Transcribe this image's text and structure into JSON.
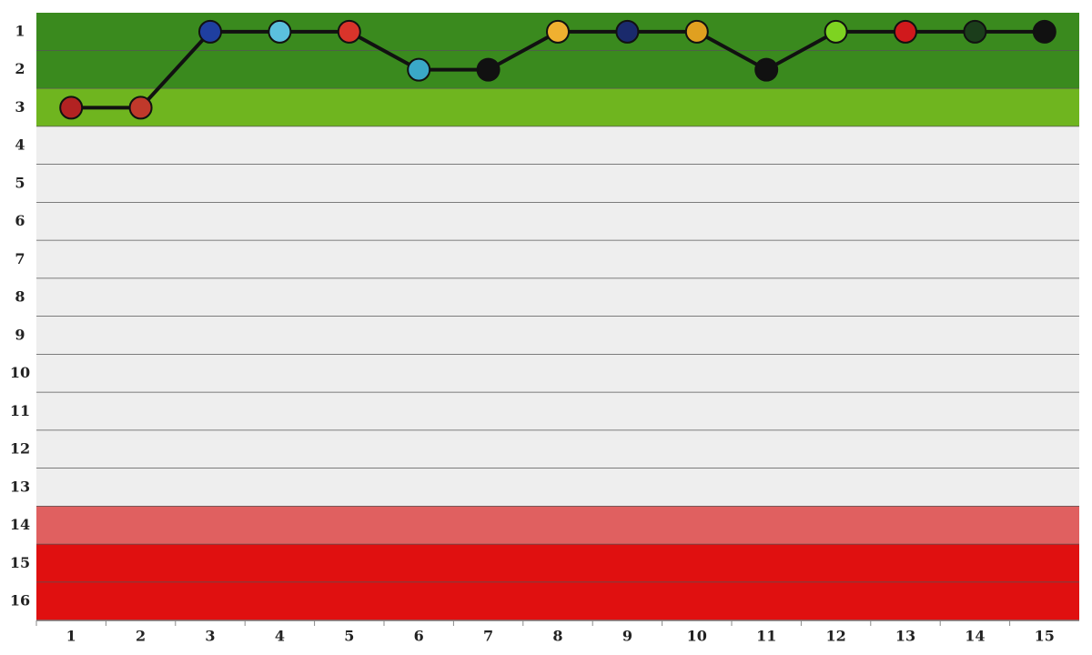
{
  "chart_data": {
    "type": "line",
    "x": [
      1,
      2,
      3,
      4,
      5,
      6,
      7,
      8,
      9,
      10,
      11,
      12,
      13,
      14,
      15
    ],
    "values": [
      3,
      3,
      1,
      1,
      1,
      2,
      2,
      1,
      1,
      1,
      2,
      1,
      1,
      1,
      1
    ],
    "color": "#111111",
    "marker_colors": [
      "#b22222",
      "#c0392b",
      "#1f3fa0",
      "#5bc0de",
      "#d9342b",
      "#3aa8c8",
      "#111111",
      "#f0b030",
      "#1a2a6c",
      "#e0a020",
      "#111111",
      "#7ed321",
      "#d0191c",
      "#1b3d1b",
      "#111111"
    ],
    "xlim": [
      0.5,
      15.5
    ],
    "xticks": [
      1,
      2,
      3,
      4,
      5,
      6,
      7,
      8,
      9,
      10,
      11,
      12,
      13,
      14,
      15
    ],
    "ylim": [
      0.5,
      16.5
    ],
    "yticks": [
      1,
      2,
      3,
      4,
      5,
      6,
      7,
      8,
      9,
      10,
      11,
      12,
      13,
      14,
      15,
      16
    ],
    "y_inverted": true,
    "row_colors": [
      "#3a8a1e",
      "#3a8a1e",
      "#6fb51f",
      "#eeeeee",
      "#eeeeee",
      "#eeeeee",
      "#eeeeee",
      "#eeeeee",
      "#eeeeee",
      "#eeeeee",
      "#eeeeee",
      "#eeeeee",
      "#eeeeee",
      "#e06060",
      "#e01010",
      "#e01010"
    ]
  }
}
